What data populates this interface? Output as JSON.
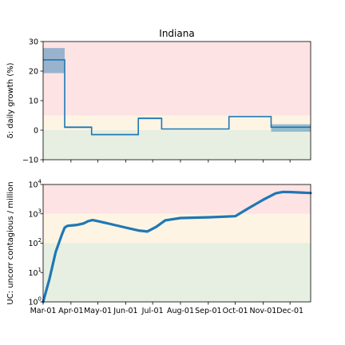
{
  "chart_data": [
    {
      "type": "line",
      "subtype": "step",
      "title": "Indiana",
      "xlabel": "",
      "ylabel": "δ: daily growth (%)",
      "ylim": [
        -10,
        30
      ],
      "yticks": [
        -10,
        0,
        10,
        20,
        30
      ],
      "ytick_labels": [
        "−10",
        "0",
        "10",
        "20",
        "30"
      ],
      "x_categories": [
        "Mar-01",
        "Apr-01",
        "May-01",
        "Jun-01",
        "Jul-01",
        "Aug-01",
        "Sep-01",
        "Oct-01",
        "Nov-01",
        "Dec-01"
      ],
      "x_range": [
        "2020-03-01",
        "2020-12-24"
      ],
      "grid": false,
      "background_bands": [
        {
          "from": -10,
          "to": 0,
          "color": "#e6efe1"
        },
        {
          "from": 0,
          "to": 5,
          "color": "#fdf4e3"
        },
        {
          "from": 5,
          "to": 30,
          "color": "#fde3e3"
        }
      ],
      "series": [
        {
          "color": "#1f77b4",
          "segments": [
            {
              "start": "2020-03-01",
              "end": "2020-03-25",
              "value": 23.8,
              "band_low": 19.3,
              "band_high": 27.8
            },
            {
              "start": "2020-03-25",
              "end": "2020-04-24",
              "value": 1.0,
              "band_low": 0.7,
              "band_high": 1.3
            },
            {
              "start": "2020-04-24",
              "end": "2020-06-15",
              "value": -1.5,
              "band_low": -1.7,
              "band_high": -1.3
            },
            {
              "start": "2020-06-15",
              "end": "2020-07-11",
              "value": 4.0,
              "band_low": 3.7,
              "band_high": 4.3
            },
            {
              "start": "2020-07-11",
              "end": "2020-09-24",
              "value": 0.4,
              "band_low": 0.3,
              "band_high": 0.5
            },
            {
              "start": "2020-09-24",
              "end": "2020-11-10",
              "value": 4.6,
              "band_low": 4.4,
              "band_high": 4.8
            },
            {
              "start": "2020-11-10",
              "end": "2020-12-24",
              "value": 1.0,
              "band_low": -0.5,
              "band_high": 2.0
            }
          ]
        }
      ]
    },
    {
      "type": "line",
      "title": "",
      "xlabel": "",
      "ylabel": "UC: uncorr contagious / million",
      "yscale": "log",
      "ylim": [
        1,
        10000
      ],
      "yticks": [
        1,
        10,
        100,
        1000,
        10000
      ],
      "ytick_labels": [
        "10",
        "10",
        "10",
        "10",
        "10"
      ],
      "ytick_exponents": [
        "0",
        "1",
        "2",
        "3",
        "4"
      ],
      "x_categories": [
        "Mar-01",
        "Apr-01",
        "May-01",
        "Jun-01",
        "Jul-01",
        "Aug-01",
        "Sep-01",
        "Oct-01",
        "Nov-01",
        "Dec-01"
      ],
      "x_range": [
        "2020-03-01",
        "2020-12-24"
      ],
      "grid": false,
      "background_bands": [
        {
          "from": 1,
          "to": 100,
          "color": "#e6efe1"
        },
        {
          "from": 100,
          "to": 1000,
          "color": "#fdf4e3"
        },
        {
          "from": 1000,
          "to": 10000,
          "color": "#fde3e3"
        }
      ],
      "series": [
        {
          "color": "#1f77b4",
          "x": [
            "2020-03-01",
            "2020-03-08",
            "2020-03-15",
            "2020-03-22",
            "2020-03-25",
            "2020-03-28",
            "2020-04-01",
            "2020-04-08",
            "2020-04-15",
            "2020-04-20",
            "2020-04-25",
            "2020-04-29",
            "2020-05-15",
            "2020-06-01",
            "2020-06-15",
            "2020-06-25",
            "2020-07-05",
            "2020-07-15",
            "2020-08-01",
            "2020-09-01",
            "2020-10-01",
            "2020-10-15",
            "2020-11-01",
            "2020-11-15",
            "2020-11-23",
            "2020-12-01",
            "2020-12-24"
          ],
          "values": [
            1,
            6,
            50,
            200,
            340,
            390,
            400,
            420,
            470,
            560,
            610,
            580,
            450,
            340,
            270,
            250,
            360,
            600,
            720,
            760,
            830,
            1500,
            3000,
            5000,
            5600,
            5500,
            5100
          ]
        }
      ]
    }
  ]
}
